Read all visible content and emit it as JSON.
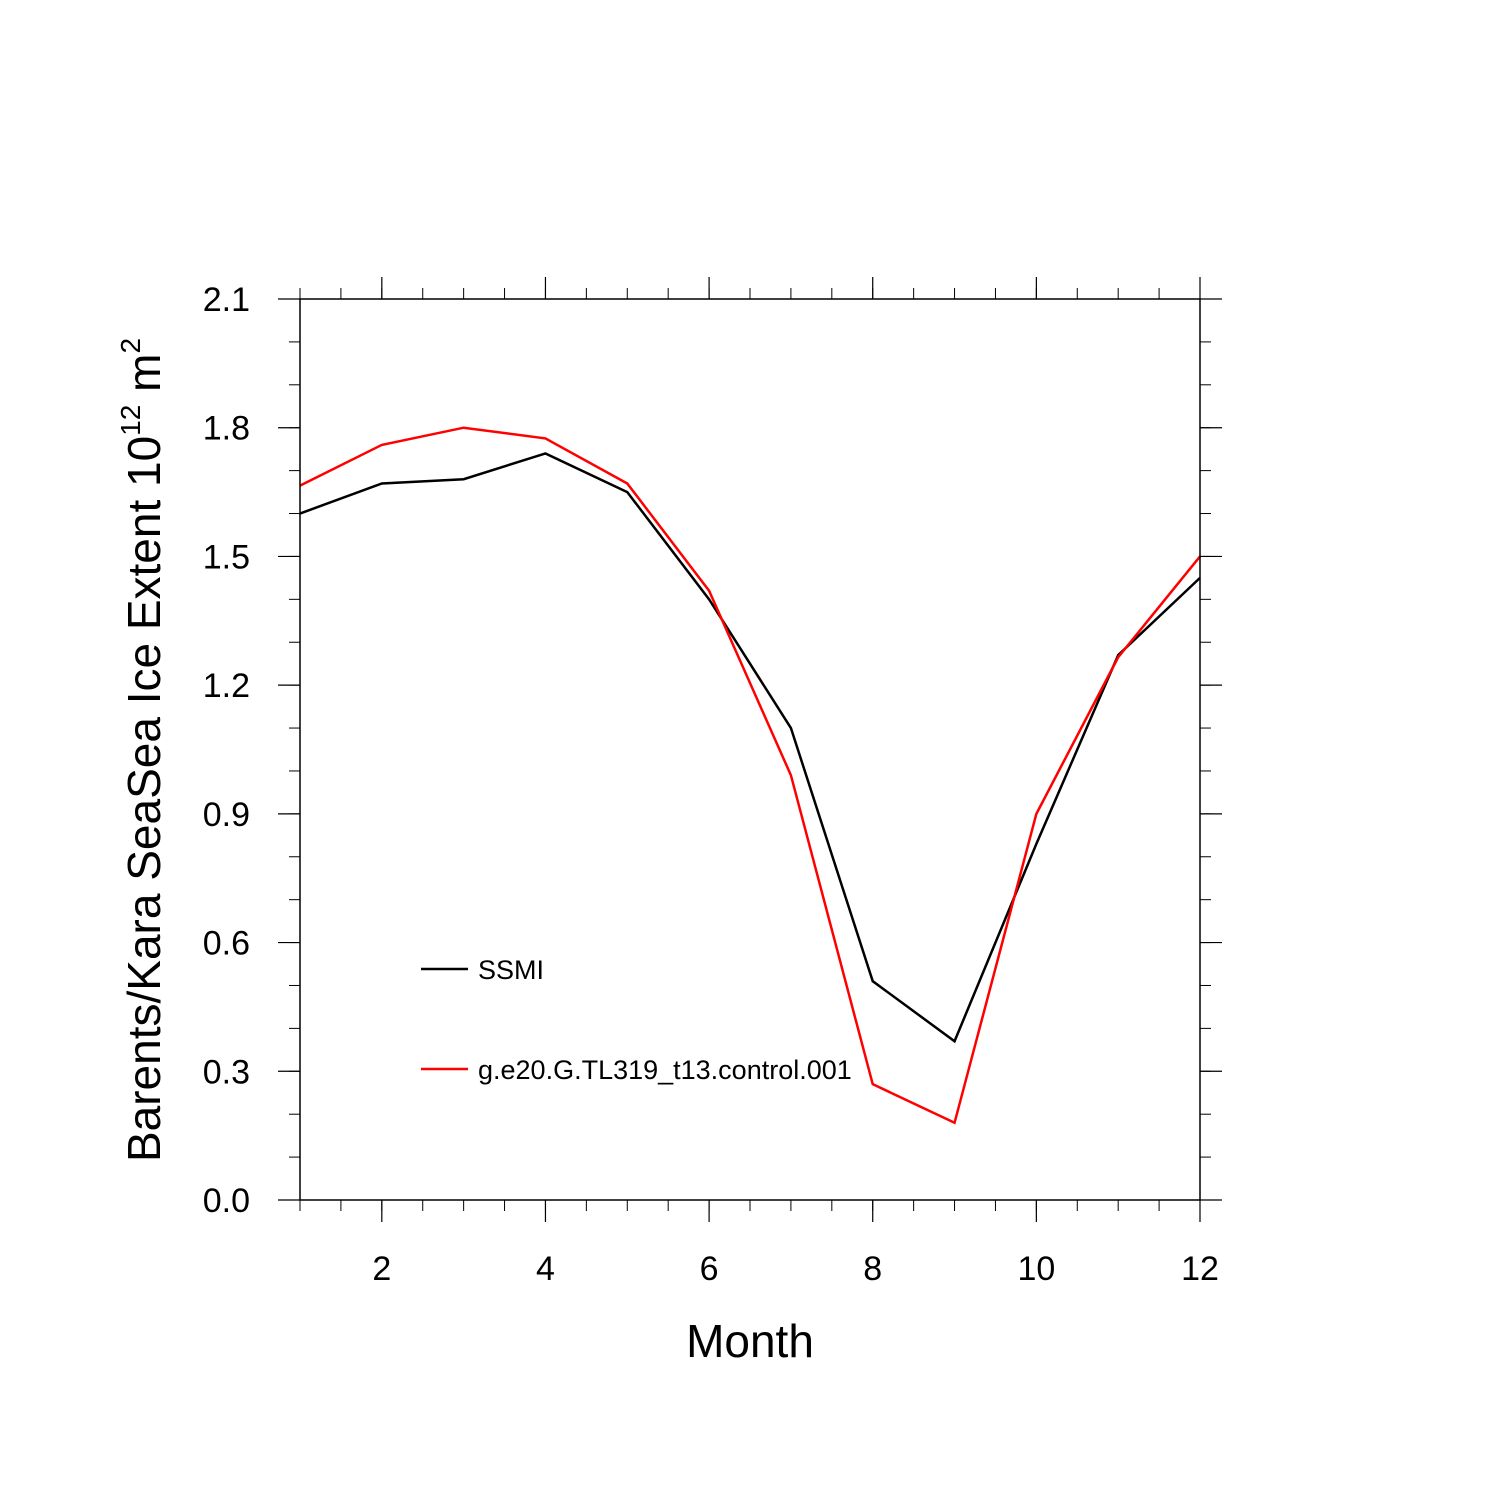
{
  "chart_data": {
    "type": "line",
    "xlabel": "Month",
    "ylabel": {
      "prefix": "Barents/Kara SeaSea Ice Extent 10",
      "exponent1": "12",
      "unit": " m",
      "exponent2": "2"
    },
    "xlim": [
      1,
      12
    ],
    "ylim": [
      0.0,
      2.1
    ],
    "x_ticks": [
      2,
      4,
      6,
      8,
      10,
      12
    ],
    "x_tick_labels": [
      "2",
      "4",
      "6",
      "8",
      "10",
      "12"
    ],
    "y_ticks": [
      0.0,
      0.3,
      0.6,
      0.9,
      1.2,
      1.5,
      1.8,
      2.1
    ],
    "y_tick_labels": [
      "0.0",
      "0.3",
      "0.6",
      "0.9",
      "1.2",
      "1.5",
      "1.8",
      "2.1"
    ],
    "x": [
      1,
      2,
      3,
      4,
      5,
      6,
      7,
      8,
      9,
      10,
      11,
      12
    ],
    "grid": false,
    "legend_position": "lower-left",
    "series": [
      {
        "name": "SSMI",
        "color": "#000000",
        "values": [
          1.6,
          1.67,
          1.68,
          1.74,
          1.65,
          1.4,
          1.1,
          0.51,
          0.37,
          0.83,
          1.27,
          1.45
        ]
      },
      {
        "name": "g.e20.G.TL319_t13.control.001",
        "color": "#ff0000",
        "values": [
          1.665,
          1.76,
          1.8,
          1.775,
          1.67,
          1.42,
          0.99,
          0.27,
          0.18,
          0.9,
          1.265,
          1.5
        ]
      }
    ]
  }
}
